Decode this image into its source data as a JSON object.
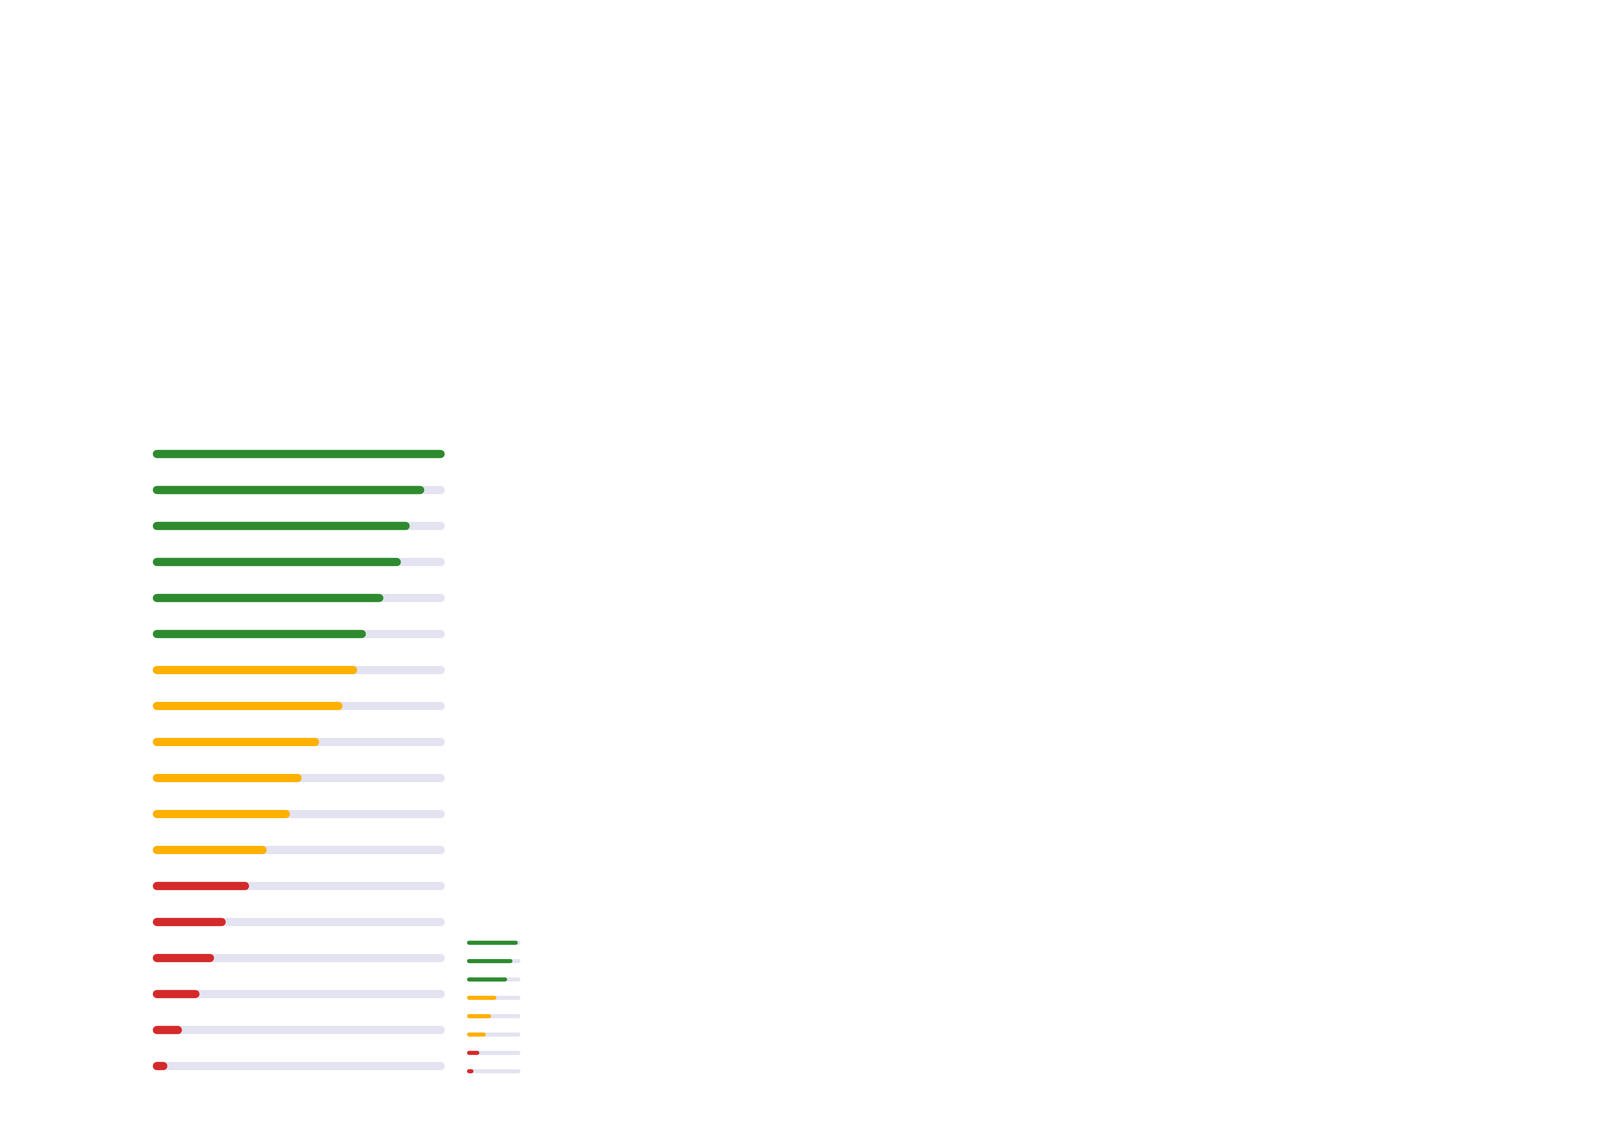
{
  "chart_data": [
    {
      "type": "bar",
      "orientation": "horizontal",
      "categories": [
        null,
        null,
        null,
        null,
        null,
        null,
        null,
        null,
        null,
        null,
        null,
        null,
        null,
        null,
        null,
        null,
        null,
        null
      ],
      "values": [
        100,
        93,
        88,
        85,
        79,
        73,
        70,
        65,
        57,
        51,
        47,
        39,
        33,
        25,
        21,
        16,
        10,
        5
      ],
      "colors": [
        "#2e8b2e",
        "#2e8b2e",
        "#2e8b2e",
        "#2e8b2e",
        "#2e8b2e",
        "#2e8b2e",
        "#ffb000",
        "#ffb000",
        "#ffb000",
        "#ffb000",
        "#ffb000",
        "#ffb000",
        "#d42a2a",
        "#d42a2a",
        "#d42a2a",
        "#d42a2a",
        "#d42a2a",
        "#d42a2a"
      ],
      "xlim": [
        0,
        100
      ],
      "xticks": [
        0,
        100
      ],
      "grid": false,
      "tick_labels": false
    },
    {
      "type": "bar",
      "orientation": "horizontal",
      "categories": [
        null,
        null,
        null,
        null,
        null,
        null,
        null,
        null
      ],
      "values": [
        95,
        85,
        75,
        55,
        45,
        35,
        23,
        12
      ],
      "colors": [
        "#2e8b2e",
        "#2e8b2e",
        "#2e8b2e",
        "#ffb000",
        "#ffb000",
        "#ffb000",
        "#d42a2a",
        "#d42a2a"
      ],
      "xlim": [
        0,
        100
      ],
      "xticks": [
        0,
        100
      ],
      "grid": false,
      "tick_labels": false
    }
  ]
}
